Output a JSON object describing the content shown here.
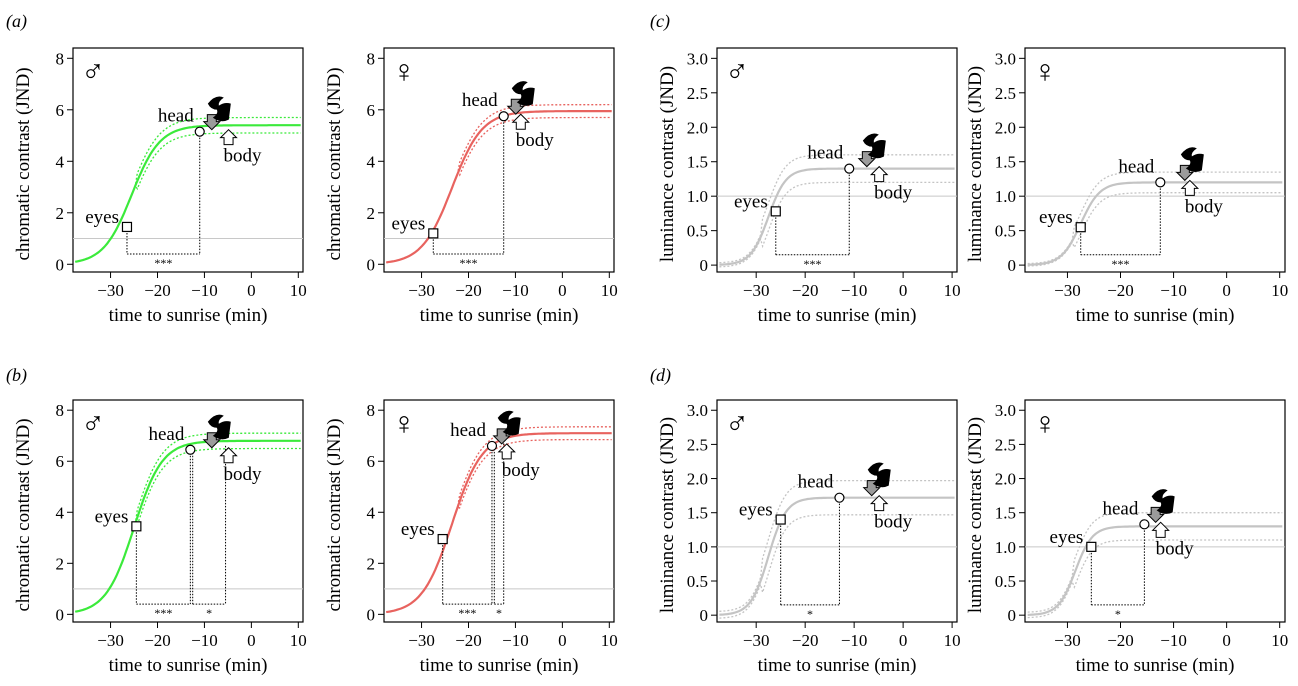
{
  "panel_letters": [
    "(a)",
    "(b)",
    "(c)",
    "(d)"
  ],
  "labels": {
    "eyes": "eyes",
    "head": "head",
    "body": "body"
  },
  "male_symbol": "♂",
  "female_symbol": "♀",
  "colors": {
    "male_chromatic": "#3bea3b",
    "female_chromatic": "#e8635f",
    "luminance": "#c4c4c4",
    "threshold": "#c8c8c8"
  },
  "chart_data": [
    {
      "id": "a-male",
      "panel": "a",
      "sex": "male",
      "type": "line",
      "metric": "chromatic",
      "xlabel": "time to sunrise (min)",
      "ylabel": "chromatic contrast (JND)",
      "xlim": [
        -38,
        11
      ],
      "ylim": [
        -0.3,
        8.4
      ],
      "xticks": [
        -30,
        -20,
        -10,
        0,
        10
      ],
      "yticks": [
        0,
        2,
        4,
        6,
        8
      ],
      "threshold": 1,
      "curve": {
        "start": 0,
        "end": 5.4,
        "mid": -25.5,
        "width": 3.0
      },
      "band": 0.3,
      "band_scale": 0.03,
      "band_start": -24.5,
      "eyes": {
        "x": -26.5,
        "y": 1.45
      },
      "head": {
        "x": -11,
        "y": 5.15
      },
      "body": {
        "x": -5.5,
        "y": 5.05
      },
      "icon_x": -8,
      "signif": [
        {
          "from": -26.5,
          "to": -11,
          "label": "***"
        }
      ],
      "signif_y": 0.4
    },
    {
      "id": "a-female",
      "panel": "a",
      "sex": "female",
      "type": "line",
      "metric": "chromatic",
      "xlabel": "time to sunrise (min)",
      "ylabel": "chromatic contrast (JND)",
      "xlim": [
        -38,
        11
      ],
      "ylim": [
        -0.3,
        8.4
      ],
      "xticks": [
        -30,
        -20,
        -10,
        0,
        10
      ],
      "yticks": [
        0,
        2,
        4,
        6,
        8
      ],
      "threshold": 1,
      "curve": {
        "start": 0,
        "end": 5.95,
        "mid": -23.5,
        "width": 3.2
      },
      "band": 0.25,
      "band_scale": 0.02,
      "band_start": -22,
      "eyes": {
        "x": -27.5,
        "y": 1.2
      },
      "head": {
        "x": -12.5,
        "y": 5.75
      },
      "body": {
        "x": -9.5,
        "y": 5.75
      },
      "icon_x": -7,
      "signif": [
        {
          "from": -27.5,
          "to": -12.5,
          "label": "***"
        }
      ],
      "signif_y": 0.4
    },
    {
      "id": "c-male",
      "panel": "c",
      "sex": "male",
      "type": "line",
      "metric": "luminance",
      "xlabel": "time to sunrise (min)",
      "ylabel": "luminance contrast (JND)",
      "xlim": [
        -38,
        11
      ],
      "ylim": [
        -0.1,
        3.15
      ],
      "xticks": [
        -30,
        -20,
        -10,
        0,
        10
      ],
      "yticks": [
        0,
        0.5,
        1.0,
        1.5,
        2.0,
        2.5,
        3.0
      ],
      "threshold": 1,
      "curve": {
        "start": 0,
        "end": 1.4,
        "mid": -27.5,
        "width": 1.8
      },
      "band": 0.2,
      "band_scale": 0.15,
      "band_start": -29,
      "eyes": {
        "x": -26,
        "y": 0.78
      },
      "head": {
        "x": -11,
        "y": 1.4
      },
      "body": {
        "x": -5.5,
        "y": 1.3
      },
      "icon_x": -7,
      "signif": [
        {
          "from": -26,
          "to": -11,
          "label": "***"
        }
      ],
      "signif_y": 0.15
    },
    {
      "id": "c-female",
      "panel": "c",
      "sex": "female",
      "type": "line",
      "metric": "luminance",
      "xlabel": "time to sunrise (min)",
      "ylabel": "luminance contrast (JND)",
      "xlim": [
        -38,
        11
      ],
      "ylim": [
        -0.1,
        3.15
      ],
      "xticks": [
        -30,
        -20,
        -10,
        0,
        10
      ],
      "yticks": [
        0,
        0.5,
        1.0,
        1.5,
        2.0,
        2.5,
        3.0
      ],
      "threshold": 1,
      "curve": {
        "start": 0,
        "end": 1.2,
        "mid": -27.5,
        "width": 1.8
      },
      "band": 0.15,
      "band_scale": 0.12,
      "band_start": -29,
      "eyes": {
        "x": -27.5,
        "y": 0.55
      },
      "head": {
        "x": -12.5,
        "y": 1.2
      },
      "body": {
        "x": -7.5,
        "y": 1.2
      },
      "icon_x": -5,
      "signif": [
        {
          "from": -27.5,
          "to": -12.5,
          "label": "***"
        }
      ],
      "signif_y": 0.15
    },
    {
      "id": "b-male",
      "panel": "b",
      "sex": "male",
      "type": "line",
      "metric": "chromatic",
      "xlabel": "time to sunrise (min)",
      "ylabel": "chromatic contrast (JND)",
      "xlim": [
        -38,
        11
      ],
      "ylim": [
        -0.3,
        8.4
      ],
      "xticks": [
        -30,
        -20,
        -10,
        0,
        10
      ],
      "yticks": [
        0,
        2,
        4,
        6,
        8
      ],
      "threshold": 1,
      "curve": {
        "start": 0,
        "end": 6.8,
        "mid": -25.0,
        "width": 3.0
      },
      "band": 0.3,
      "band_scale": 0.03,
      "band_start": -24.5,
      "eyes": {
        "x": -24.5,
        "y": 3.45
      },
      "head": {
        "x": -13,
        "y": 6.45
      },
      "body": {
        "x": -5.5,
        "y": 6.6
      },
      "icon_x": -8,
      "signif": [
        {
          "from": -24.5,
          "to": -13,
          "label": "***"
        },
        {
          "from": -12.5,
          "to": -5.5,
          "label": "*"
        }
      ],
      "signif_y": 0.4
    },
    {
      "id": "b-female",
      "panel": "b",
      "sex": "female",
      "type": "line",
      "metric": "chromatic",
      "xlabel": "time to sunrise (min)",
      "ylabel": "chromatic contrast (JND)",
      "xlim": [
        -38,
        11
      ],
      "ylim": [
        -0.3,
        8.4
      ],
      "xticks": [
        -30,
        -20,
        -10,
        0,
        10
      ],
      "yticks": [
        0,
        2,
        4,
        6,
        8
      ],
      "threshold": 1,
      "curve": {
        "start": 0,
        "end": 7.1,
        "mid": -23.5,
        "width": 3.2
      },
      "band": 0.25,
      "band_scale": 0.02,
      "band_start": -22,
      "eyes": {
        "x": -25.5,
        "y": 2.95
      },
      "head": {
        "x": -15,
        "y": 6.6
      },
      "body": {
        "x": -12.5,
        "y": 6.7
      },
      "icon_x": -6,
      "signif": [
        {
          "from": -25.5,
          "to": -15,
          "label": "***"
        },
        {
          "from": -14.5,
          "to": -12.5,
          "label": "*"
        }
      ],
      "signif_y": 0.4
    },
    {
      "id": "d-male",
      "panel": "d",
      "sex": "male",
      "type": "line",
      "metric": "luminance",
      "xlabel": "time to sunrise (min)",
      "ylabel": "luminance contrast (JND)",
      "xlim": [
        -38,
        11
      ],
      "ylim": [
        -0.1,
        3.15
      ],
      "xticks": [
        -30,
        -20,
        -10,
        0,
        10
      ],
      "yticks": [
        0,
        0.5,
        1.0,
        1.5,
        2.0,
        2.5,
        3.0
      ],
      "threshold": 1,
      "curve": {
        "start": 0,
        "end": 1.72,
        "mid": -27.5,
        "width": 1.8
      },
      "band": 0.25,
      "band_scale": 0.2,
      "band_start": -29,
      "eyes": {
        "x": -25,
        "y": 1.4
      },
      "head": {
        "x": -13,
        "y": 1.72
      },
      "body": {
        "x": -5.5,
        "y": 1.6
      },
      "icon_x": -6,
      "signif": [
        {
          "from": -25,
          "to": -13,
          "label": "*"
        }
      ],
      "signif_y": 0.15
    },
    {
      "id": "d-female",
      "panel": "d",
      "sex": "female",
      "type": "line",
      "metric": "luminance",
      "xlabel": "time to sunrise (min)",
      "ylabel": "luminance contrast (JND)",
      "xlim": [
        -38,
        11
      ],
      "ylim": [
        -0.1,
        3.15
      ],
      "xticks": [
        -30,
        -20,
        -10,
        0,
        10
      ],
      "yticks": [
        0,
        0.5,
        1.0,
        1.5,
        2.0,
        2.5,
        3.0
      ],
      "threshold": 1,
      "curve": {
        "start": 0,
        "end": 1.3,
        "mid": -28.5,
        "width": 1.6
      },
      "band": 0.2,
      "band_scale": 0.2,
      "band_start": -29,
      "eyes": {
        "x": -25.5,
        "y": 1.0
      },
      "head": {
        "x": -15.5,
        "y": 1.33
      },
      "body": {
        "x": -13,
        "y": 1.3
      },
      "icon_x": -5,
      "signif": [
        {
          "from": -25.5,
          "to": -15.5,
          "label": "*"
        }
      ],
      "signif_y": 0.15
    }
  ]
}
